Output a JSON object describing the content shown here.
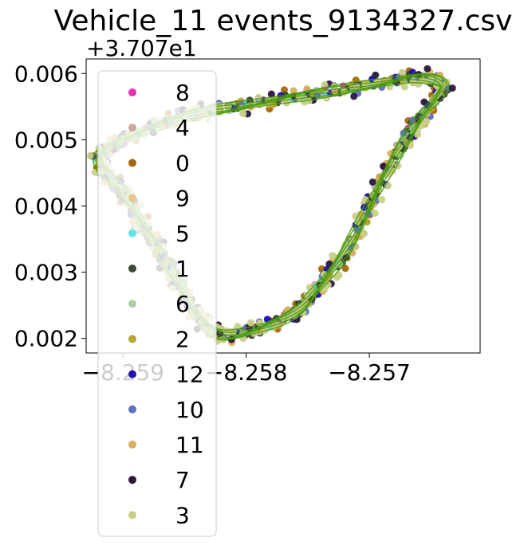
{
  "chart_data": {
    "type": "scatter",
    "title": "Vehicle_11 events_9134327.csv",
    "xlabel": "",
    "ylabel": "",
    "y_offset_label": "+3.707e1",
    "xlim": [
      -8.2593,
      -8.2561
    ],
    "ylim": [
      0.00178,
      0.00622
    ],
    "x_ticks": [
      -8.259,
      -8.258,
      -8.257
    ],
    "x_tick_labels": [
      "−8.259",
      "−8.258",
      "−8.257"
    ],
    "y_ticks": [
      0.002,
      0.003,
      0.004,
      0.005,
      0.006
    ],
    "y_tick_labels": [
      "0.002",
      "0.003",
      "0.004",
      "0.005",
      "0.006"
    ],
    "grid": false,
    "legend_position": "upper-left, overflowing below plot",
    "track_shape": [
      [
        -8.259,
        0.005
      ],
      [
        -8.2585,
        0.00535
      ],
      [
        -8.258,
        0.00552
      ],
      [
        -8.2575,
        0.00568
      ],
      [
        -8.257,
        0.00582
      ],
      [
        -8.2566,
        0.00594
      ],
      [
        -8.2564,
        0.0058
      ],
      [
        -8.2566,
        0.0053
      ],
      [
        -8.2568,
        0.0047
      ],
      [
        -8.257,
        0.004
      ],
      [
        -8.2572,
        0.0033
      ],
      [
        -8.2574,
        0.0028
      ],
      [
        -8.2576,
        0.0024
      ],
      [
        -8.2579,
        0.00215
      ],
      [
        -8.2582,
        0.00205
      ],
      [
        -8.2584,
        0.00235
      ],
      [
        -8.2586,
        0.003
      ],
      [
        -8.2588,
        0.0036
      ],
      [
        -8.259,
        0.0042
      ],
      [
        -8.2592,
        0.0047
      ]
    ],
    "line_color": "#4a9a0a",
    "series": [
      {
        "name": "8",
        "color": "#e830b0"
      },
      {
        "name": "4",
        "color": "#c8a8a0"
      },
      {
        "name": "0",
        "color": "#a86a08"
      },
      {
        "name": "9",
        "color": "#e8c888"
      },
      {
        "name": "5",
        "color": "#58e8e0"
      },
      {
        "name": "1",
        "color": "#3a4a32"
      },
      {
        "name": "6",
        "color": "#a8d0a0"
      },
      {
        "name": "2",
        "color": "#b8a830"
      },
      {
        "name": "12",
        "color": "#2010b0"
      },
      {
        "name": "10",
        "color": "#6070c0"
      },
      {
        "name": "11",
        "color": "#d8b060"
      },
      {
        "name": "7",
        "color": "#2a1840"
      },
      {
        "name": "3",
        "color": "#c8d088"
      }
    ]
  }
}
